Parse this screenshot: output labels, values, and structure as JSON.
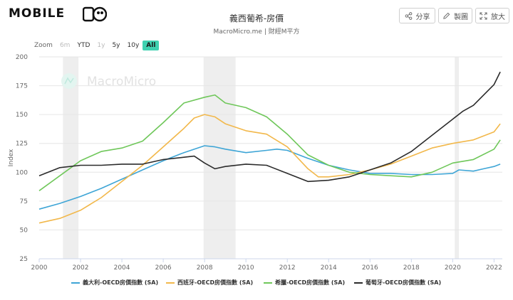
{
  "header": {
    "logo_text": "MOBILE",
    "title": "義西葡希-房價",
    "subtitle": "MacroMicro.me | 財經M平方",
    "buttons": [
      {
        "label": "分享",
        "icon": "share-icon"
      },
      {
        "label": "製圖",
        "icon": "pencil-icon"
      },
      {
        "label": "放大",
        "icon": "expand-icon"
      }
    ]
  },
  "zoom": {
    "label": "Zoom",
    "options": [
      "6m",
      "YTD",
      "1y",
      "5y",
      "10y",
      "All"
    ],
    "selected": "All"
  },
  "watermark": "MacroMicro",
  "colors": {
    "italy": "#3ea5d6",
    "spain": "#f2b84b",
    "greece": "#6fc75a",
    "portugal": "#2b2b2b",
    "recession": "#eeeeee",
    "zoom_selected": "#3fd1b0"
  },
  "chart_data": {
    "type": "line",
    "ylabel": "Index",
    "ylim": [
      25,
      200
    ],
    "yticks": [
      25,
      50,
      75,
      100,
      125,
      150,
      175,
      200
    ],
    "xlim": [
      2000,
      2022.4
    ],
    "xticks": [
      "2000",
      "2002",
      "2004",
      "2006",
      "2008",
      "2010",
      "2012",
      "2014",
      "2016",
      "2018",
      "2020",
      "2022"
    ],
    "shaded_periods": [
      [
        2001.15,
        2001.9
      ],
      [
        2007.95,
        2009.5
      ],
      [
        2020.1,
        2020.3
      ]
    ],
    "grid": "horizontal",
    "legend_position": "bottom",
    "series": [
      {
        "name": "義大利-OECD房價指數 (SA)",
        "key": "italy",
        "x": [
          2000,
          2001,
          2002,
          2003,
          2004,
          2005,
          2006,
          2007,
          2008,
          2008.5,
          2009,
          2010,
          2011,
          2011.5,
          2012,
          2013,
          2014,
          2015,
          2016,
          2017,
          2018,
          2019,
          2020,
          2020.3,
          2021,
          2021.5,
          2022,
          2022.3
        ],
        "values": [
          68,
          73,
          79,
          86,
          94,
          102,
          110,
          117,
          123,
          122,
          120,
          117,
          119,
          120,
          119,
          112,
          106,
          102,
          99,
          99,
          98,
          98,
          99,
          102,
          101,
          103,
          105,
          107
        ]
      },
      {
        "name": "西班牙-OECD房價指數 (SA)",
        "key": "spain",
        "x": [
          2000,
          2001,
          2002,
          2003,
          2004,
          2005,
          2006,
          2007,
          2007.5,
          2008,
          2008.5,
          2009,
          2010,
          2011,
          2012,
          2013,
          2013.5,
          2014,
          2015,
          2016,
          2017,
          2018,
          2019,
          2020,
          2021,
          2022,
          2022.3
        ],
        "values": [
          56,
          60,
          67,
          78,
          92,
          106,
          122,
          138,
          147,
          150,
          148,
          142,
          136,
          133,
          122,
          103,
          96,
          96,
          98,
          102,
          107,
          114,
          121,
          125,
          128,
          135,
          142
        ]
      },
      {
        "name": "希臘-OECD房價指數 (SA)",
        "key": "greece",
        "x": [
          2000,
          2001,
          2002,
          2003,
          2004,
          2005,
          2006,
          2007,
          2008,
          2008.5,
          2009,
          2010,
          2011,
          2012,
          2013,
          2014,
          2015,
          2016,
          2017,
          2018,
          2019,
          2020,
          2021,
          2022,
          2022.3
        ],
        "values": [
          84,
          97,
          110,
          118,
          121,
          127,
          143,
          160,
          165,
          167,
          160,
          156,
          148,
          133,
          115,
          106,
          100,
          98,
          97,
          96,
          100,
          108,
          111,
          120,
          128
        ]
      },
      {
        "name": "葡萄牙-OECD房價指數 (SA)",
        "key": "portugal",
        "x": [
          2000,
          2001,
          2002,
          2003,
          2004,
          2005,
          2006,
          2007,
          2007.5,
          2008,
          2008.5,
          2009,
          2010,
          2011,
          2012,
          2013,
          2014,
          2015,
          2016,
          2017,
          2018,
          2019,
          2020,
          2020.5,
          2021,
          2022,
          2022.3
        ],
        "values": [
          97,
          104,
          106,
          106,
          107,
          107,
          111,
          113,
          114,
          108,
          103,
          105,
          107,
          106,
          99,
          92,
          93,
          96,
          102,
          108,
          118,
          132,
          146,
          153,
          158,
          176,
          187
        ]
      }
    ]
  }
}
